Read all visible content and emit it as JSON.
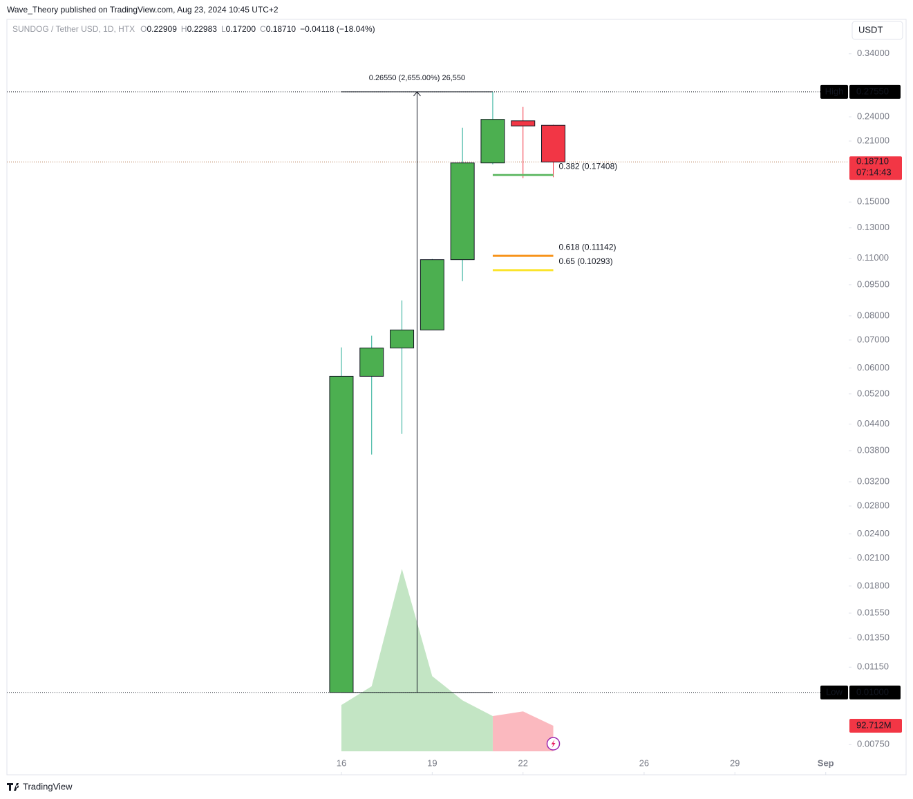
{
  "header": {
    "publisher": "Wave_Theory published on TradingView.com, Aug 23, 2024 10:45 UTC+2",
    "currency_button": "USDT",
    "footer_brand": "TradingView"
  },
  "chart_data": {
    "type": "candlestick",
    "symbol": "SUNDOG / Tether USD, 1D, HTX",
    "legend": {
      "open_key": "O",
      "open": "0.22909",
      "high_key": "H",
      "high": "0.22983",
      "low_key": "L",
      "low": "0.17200",
      "close_key": "C",
      "close": "0.18710",
      "change": "−0.04118 (−18.04%)"
    },
    "x": [
      16,
      17,
      18,
      19,
      20,
      21,
      22,
      23
    ],
    "open": [
      0.01,
      0.0573,
      0.067,
      0.074,
      0.1091,
      0.1861,
      0.2348,
      0.22909
    ],
    "high": [
      0.0672,
      0.0717,
      0.0871,
      0.1095,
      0.2261,
      0.2755,
      0.2535,
      0.22983
    ],
    "low": [
      0.01,
      0.0372,
      0.0417,
      0.074,
      0.0969,
      0.1847,
      0.1711,
      0.172
    ],
    "close": [
      0.0573,
      0.067,
      0.074,
      0.1091,
      0.1861,
      0.2367,
      0.22828,
      0.1871
    ],
    "up_color": "#4caf50",
    "down_color": "#f23645",
    "up_wick_color": "#22ab94",
    "down_wick_color": "#f23645",
    "high_marker": {
      "label": "High",
      "value": 0.2755,
      "value_label": "0.27550"
    },
    "low_marker": {
      "label": "Low",
      "value": 0.01,
      "value_label": "0.01000"
    },
    "last_price": {
      "value": 0.1871,
      "value_label": "0.18710",
      "countdown": "07:14:43",
      "color": "#f23645"
    },
    "measure": {
      "label": "0.26550 (2,655.00%) 26,550",
      "from": 0.01,
      "to": 0.2755,
      "x_from": 16,
      "x_to": 21
    },
    "fib": {
      "x_from": 21,
      "x_to": 23,
      "levels": [
        {
          "label": "0.382 (0.17408)",
          "value": 0.17408,
          "color": "#66bb6a"
        },
        {
          "label": "0.618 (0.11142)",
          "value": 0.11142,
          "color": "#f7931a"
        },
        {
          "label": "0.65 (0.10293)",
          "value": 0.10293,
          "color": "#fbe42b"
        }
      ]
    },
    "volume": {
      "values": [
        168000000,
        236000000,
        662000000,
        273000000,
        185000000,
        128000000,
        145000000,
        92712000
      ],
      "value_labels": [
        null,
        null,
        null,
        null,
        null,
        null,
        null,
        "92.712M"
      ],
      "up_color": "#c3e5c4",
      "down_color": "#fbb9bf",
      "ylim": [
        0,
        700000000
      ]
    },
    "log_scale": true,
    "xlim": [
      4.95,
      32.76
    ],
    "xticks": [
      16,
      19,
      22,
      26,
      29,
      {
        "value": 32,
        "label": "Sep"
      }
    ],
    "ylim": [
      0.0072,
      0.408
    ],
    "yticks": [
      {
        "value": 0.34,
        "label": "0.34000"
      },
      {
        "value": 0.24,
        "label": "0.24000"
      },
      {
        "value": 0.21,
        "label": "0.21000"
      },
      {
        "value": 0.15,
        "label": "0.15000"
      },
      {
        "value": 0.13,
        "label": "0.13000"
      },
      {
        "value": 0.11,
        "label": "0.11000"
      },
      {
        "value": 0.095,
        "label": "0.09500"
      },
      {
        "value": 0.08,
        "label": "0.08000"
      },
      {
        "value": 0.07,
        "label": "0.07000"
      },
      {
        "value": 0.06,
        "label": "0.06000"
      },
      {
        "value": 0.052,
        "label": "0.05200"
      },
      {
        "value": 0.044,
        "label": "0.04400"
      },
      {
        "value": 0.038,
        "label": "0.03800"
      },
      {
        "value": 0.032,
        "label": "0.03200"
      },
      {
        "value": 0.028,
        "label": "0.02800"
      },
      {
        "value": 0.024,
        "label": "0.02400"
      },
      {
        "value": 0.021,
        "label": "0.02100"
      },
      {
        "value": 0.018,
        "label": "0.01800"
      },
      {
        "value": 0.0155,
        "label": "0.01550"
      },
      {
        "value": 0.0135,
        "label": "0.01350"
      },
      {
        "value": 0.0115,
        "label": "0.01150"
      },
      {
        "value": 0.0075,
        "label": "0.00750"
      }
    ]
  }
}
